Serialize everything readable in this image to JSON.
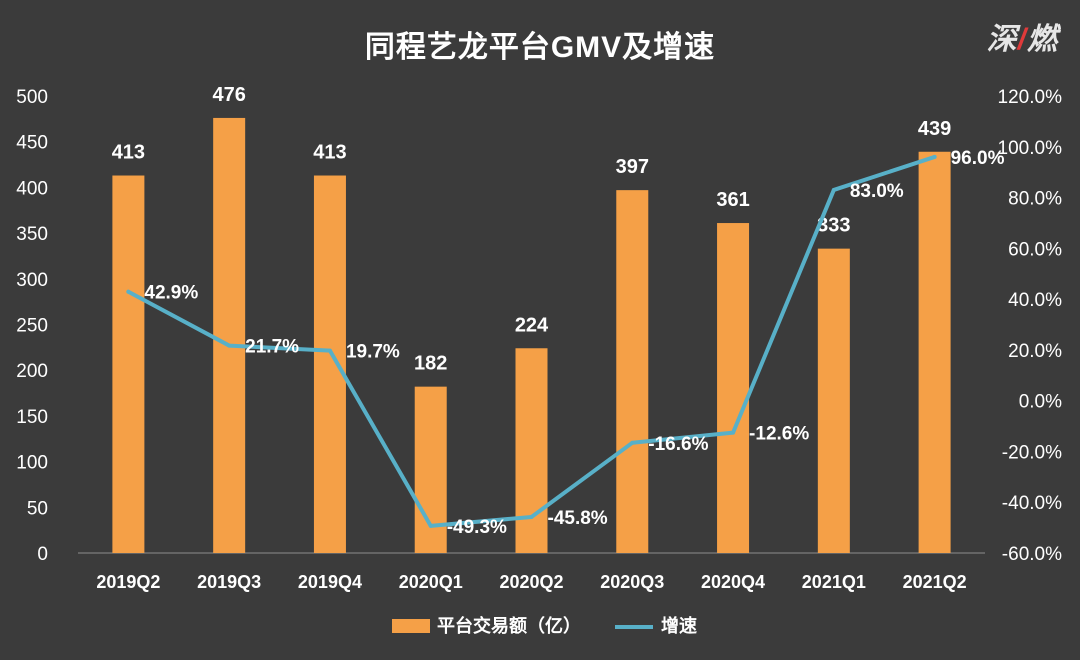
{
  "header": {
    "title": "同程艺龙平台GMV及增速"
  },
  "watermark": {
    "text_a": "深",
    "text_b": "燃",
    "accent_color": "#e03a3a"
  },
  "colors": {
    "bar": "#f5a047",
    "line": "#58b0c8",
    "background": "#3b3b3b",
    "text": "#ffffff",
    "axis": "#8c8c8c"
  },
  "chart_data": {
    "type": "bar",
    "title": "同程艺龙平台GMV及增速",
    "categories": [
      "2019Q2",
      "2019Q3",
      "2019Q4",
      "2020Q1",
      "2020Q2",
      "2020Q3",
      "2020Q4",
      "2021Q1",
      "2021Q2"
    ],
    "series": [
      {
        "name": "平台交易额（亿）",
        "type": "bar",
        "axis": "left",
        "values": [
          413,
          476,
          413,
          182,
          224,
          397,
          361,
          333,
          439
        ],
        "labels": [
          "413",
          "476",
          "413",
          "182",
          "224",
          "397",
          "361",
          "333",
          "439"
        ]
      },
      {
        "name": "增速",
        "type": "line",
        "axis": "right",
        "values": [
          42.9,
          21.7,
          19.7,
          -49.3,
          -45.8,
          -16.6,
          -12.6,
          83.0,
          96.0
        ],
        "labels": [
          "42.9%",
          "21.7%",
          "19.7%",
          "-49.3%",
          "-45.8%",
          "-16.6%",
          "-12.6%",
          "83.0%",
          "96.0%"
        ]
      }
    ],
    "y_left": {
      "min": 0,
      "max": 500,
      "ticks": [
        "0",
        "50",
        "100",
        "150",
        "200",
        "250",
        "300",
        "350",
        "400",
        "450",
        "500"
      ]
    },
    "y_right": {
      "min": -60,
      "max": 120,
      "ticks": [
        "-60.0%",
        "-40.0%",
        "-20.0%",
        "0.0%",
        "20.0%",
        "40.0%",
        "60.0%",
        "80.0%",
        "100.0%",
        "120.0%"
      ]
    },
    "grid": false,
    "legend": "bottom"
  }
}
